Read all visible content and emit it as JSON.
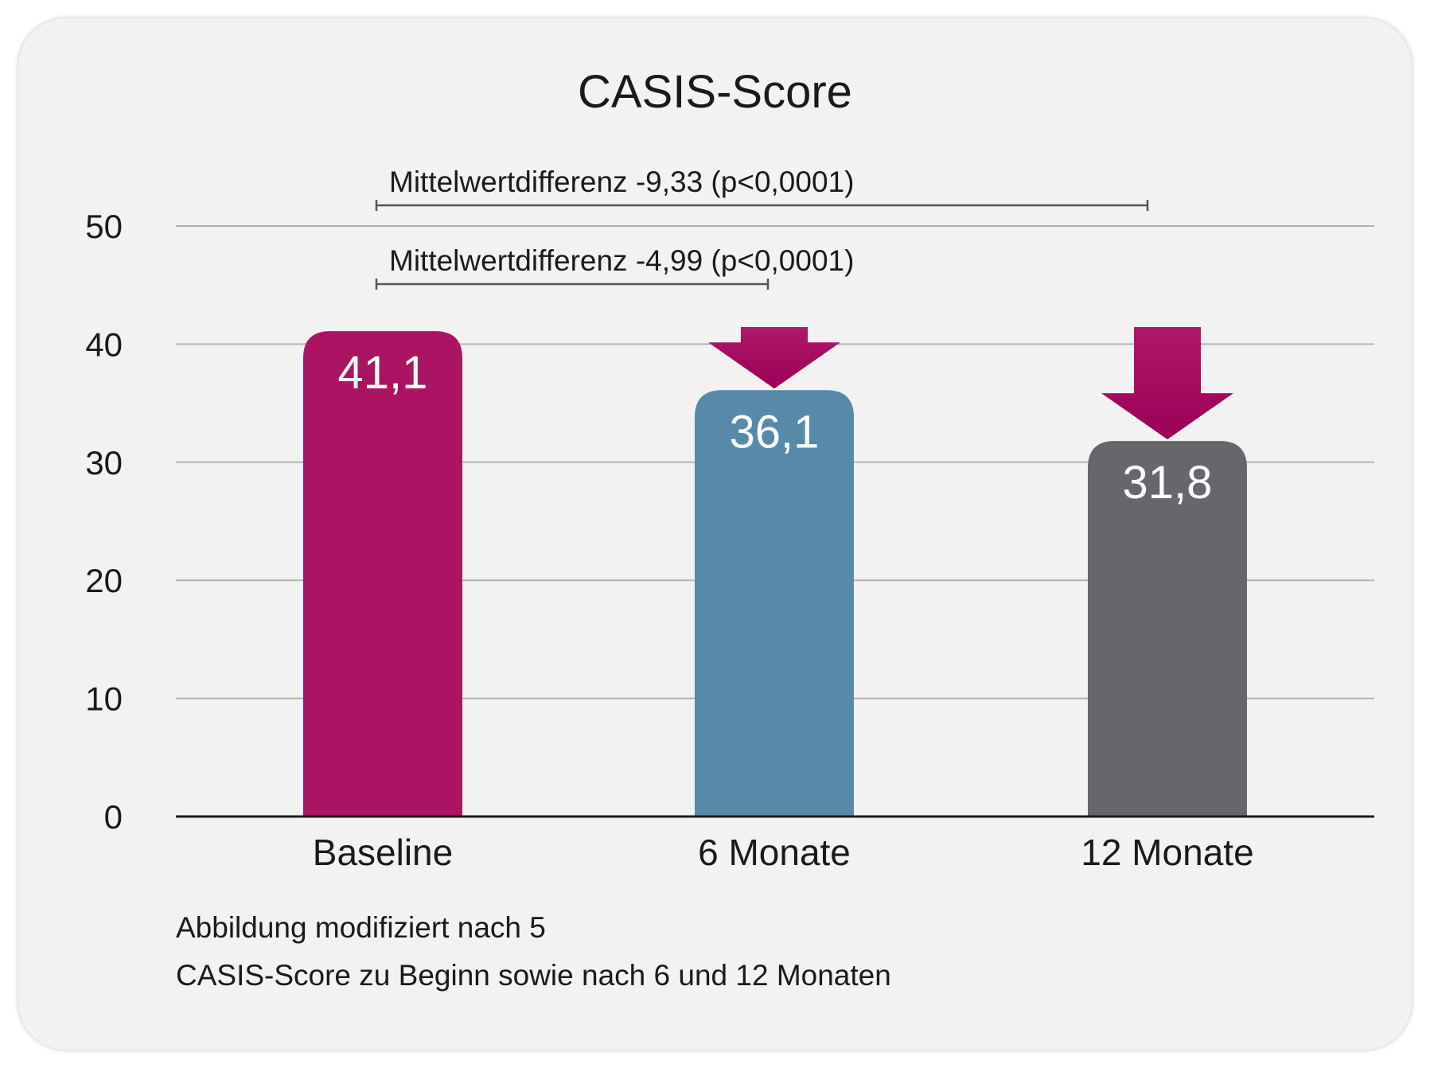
{
  "chart_data": {
    "type": "bar",
    "title": "CASIS-Score",
    "categories": [
      "Baseline",
      "6 Monate",
      "12 Monate"
    ],
    "values": [
      41.1,
      36.1,
      31.8
    ],
    "value_labels": [
      "41,1",
      "36,1",
      "31,8"
    ],
    "bar_colors": [
      "#AA1462",
      "#568AA8",
      "#65676B"
    ],
    "ylim": [
      0,
      50
    ],
    "yticks": [
      0,
      10,
      20,
      30,
      40,
      50
    ],
    "ytick_labels": [
      "0",
      "10",
      "20",
      "30",
      "40",
      "50"
    ],
    "xlabel": "",
    "ylabel": "",
    "grid": true,
    "annotations": [
      {
        "text": "Mittelwertdifferenz -9,33 (p<0,0001)",
        "from": "Baseline",
        "to": "12 Monate"
      },
      {
        "text": "Mittelwertdifferenz -4,99 (p<0,0001)",
        "from": "Baseline",
        "to": "6 Monate"
      }
    ],
    "arrow_color": "#A0005A"
  },
  "captions": [
    "Abbildung modifiziert nach 5",
    "CASIS-Score zu Beginn sowie nach 6 und 12 Monaten"
  ]
}
